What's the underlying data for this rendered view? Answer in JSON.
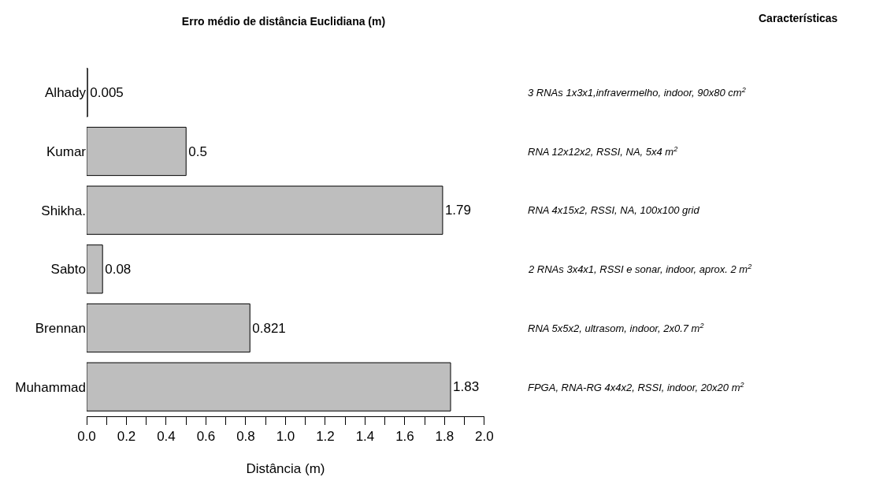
{
  "chart_data": {
    "type": "bar",
    "orientation": "horizontal",
    "title": "Erro médio de distância Euclidiana (m)",
    "xlabel": "Distância (m)",
    "categories": [
      "Alhady",
      "Kumar",
      "Shikha.",
      "Sabto",
      "Brennan",
      "Muhammad"
    ],
    "values": [
      0.005,
      0.5,
      1.79,
      0.08,
      0.821,
      1.83
    ],
    "color": "#bebebe",
    "data_labels": true,
    "xlim": [
      0,
      2
    ],
    "xticks": [
      {
        "value": 0,
        "label": "0.0"
      },
      {
        "value": 0.1,
        "label": null
      },
      {
        "value": 0.2,
        "label": "0.2"
      },
      {
        "value": 0.3,
        "label": null
      },
      {
        "value": 0.4,
        "label": "0.4"
      },
      {
        "value": 0.5,
        "label": null
      },
      {
        "value": 0.6,
        "label": "0.6"
      },
      {
        "value": 0.7,
        "label": null
      },
      {
        "value": 0.8,
        "label": "0.8"
      },
      {
        "value": 0.9,
        "label": null
      },
      {
        "value": 1,
        "label": "1.0"
      },
      {
        "value": 1.1,
        "label": null
      },
      {
        "value": 1.2,
        "label": "1.2"
      },
      {
        "value": 1.3,
        "label": null
      },
      {
        "value": 1.4,
        "label": "1.4"
      },
      {
        "value": 1.5,
        "label": null
      },
      {
        "value": 1.6,
        "label": "1.6"
      },
      {
        "value": 1.7,
        "label": null
      },
      {
        "value": 1.8,
        "label": "1.8"
      },
      {
        "value": 1.9,
        "label": null
      },
      {
        "value": 2,
        "label": "2.0"
      }
    ],
    "annotations": [
      "Características",
      "3 RNAs 1x3x1,infravermelho, indoor, 90x80 cm$^{2}$",
      "RNA 12x12x2, RSSI, NA, 5x4 m$^{2}$",
      "RNA 4x15x2, RSSI, NA, 100x100 grid",
      "2 RNAs 3x4x1, RSSI e sonar, indoor, aprox. 2 m$^{2}$",
      "RNA 5x5x2, ultrasom, indoor, 2x0.7 m$^{2}$",
      "FPGA, RNA-RG 4x4x2, RSSI, indoor, 20x20 m$^{2}$"
    ]
  }
}
